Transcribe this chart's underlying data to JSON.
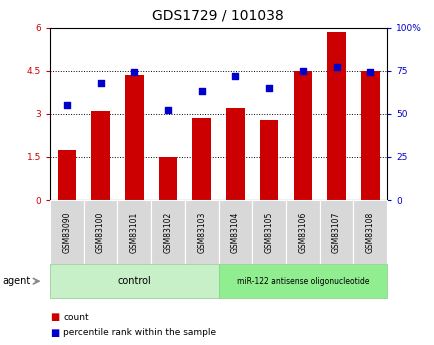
{
  "title": "GDS1729 / 101038",
  "categories": [
    "GSM83090",
    "GSM83100",
    "GSM83101",
    "GSM83102",
    "GSM83103",
    "GSM83104",
    "GSM83105",
    "GSM83106",
    "GSM83107",
    "GSM83108"
  ],
  "bar_values": [
    1.75,
    3.1,
    4.35,
    1.5,
    2.85,
    3.2,
    2.8,
    4.5,
    5.85,
    4.5
  ],
  "percentile_values": [
    55,
    68,
    74,
    52,
    63,
    72,
    65,
    75,
    77,
    74
  ],
  "bar_color": "#cc0000",
  "percentile_color": "#0000cc",
  "left_ylim": [
    0,
    6
  ],
  "right_ylim": [
    0,
    100
  ],
  "left_yticks": [
    0,
    1.5,
    3.0,
    4.5,
    6
  ],
  "left_yticklabels": [
    "0",
    "1.5",
    "3",
    "4.5",
    "6"
  ],
  "right_yticks": [
    0,
    25,
    50,
    75,
    100
  ],
  "right_yticklabels": [
    "0",
    "25",
    "50",
    "75",
    "100%"
  ],
  "dotted_lines": [
    1.5,
    3.0,
    4.5
  ],
  "control_label": "control",
  "treatment_label": "miR-122 antisense oligonucleotide",
  "control_count": 5,
  "treatment_count": 5,
  "agent_label": "agent",
  "legend_count_label": "count",
  "legend_percentile_label": "percentile rank within the sample",
  "control_bg": "#c8f0c8",
  "treatment_bg": "#90ee90",
  "title_fontsize": 10,
  "tick_fontsize": 6.5,
  "bar_width": 0.55
}
